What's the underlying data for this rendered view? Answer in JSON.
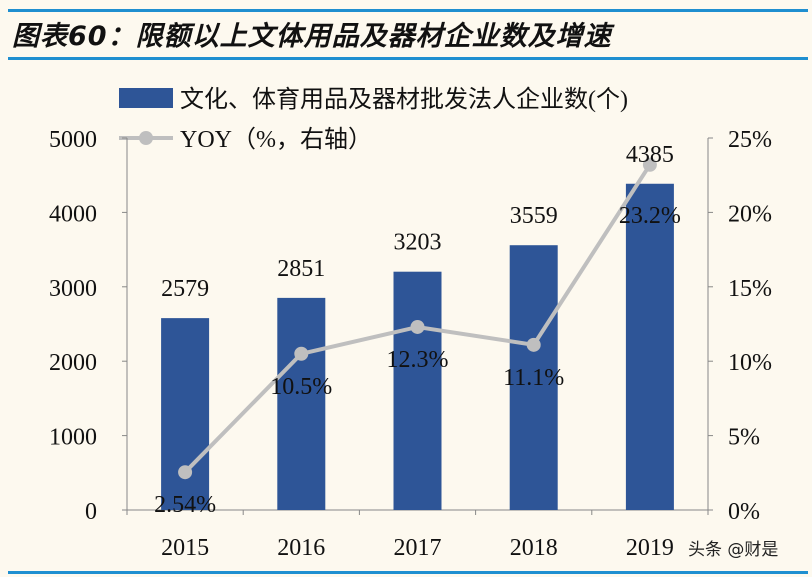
{
  "title": "图表60：限额以上文体用品及器材企业数及增速",
  "watermark": "头条 @财是",
  "colors": {
    "bar": "#2e5597",
    "line": "#bfbfbf",
    "rule": "#1f8fd0",
    "background": "#fdf9ef"
  },
  "chart_data": {
    "type": "bar+line",
    "categories": [
      "2015",
      "2016",
      "2017",
      "2018",
      "2019"
    ],
    "series": [
      {
        "name": "文化、体育用品及器材批发法人企业数(个)",
        "type": "bar",
        "axis": "left",
        "values": [
          2579,
          2851,
          3203,
          3559,
          4385
        ],
        "labels": [
          "2579",
          "2851",
          "3203",
          "3559",
          "4385"
        ]
      },
      {
        "name": "YOY（%，右轴）",
        "type": "line",
        "axis": "right",
        "values": [
          2.54,
          10.5,
          12.3,
          11.1,
          23.2
        ],
        "labels": [
          "2.54%",
          "10.5%",
          "12.3%",
          "11.1%",
          "23.2%"
        ]
      }
    ],
    "y_left": {
      "range": [
        0,
        5000
      ],
      "ticks": [
        "0",
        "1000",
        "2000",
        "3000",
        "4000",
        "5000"
      ]
    },
    "y_right": {
      "range": [
        0,
        25
      ],
      "ticks": [
        "0%",
        "5%",
        "10%",
        "15%",
        "20%",
        "25%"
      ]
    },
    "grid": false,
    "legend": "top-left"
  }
}
